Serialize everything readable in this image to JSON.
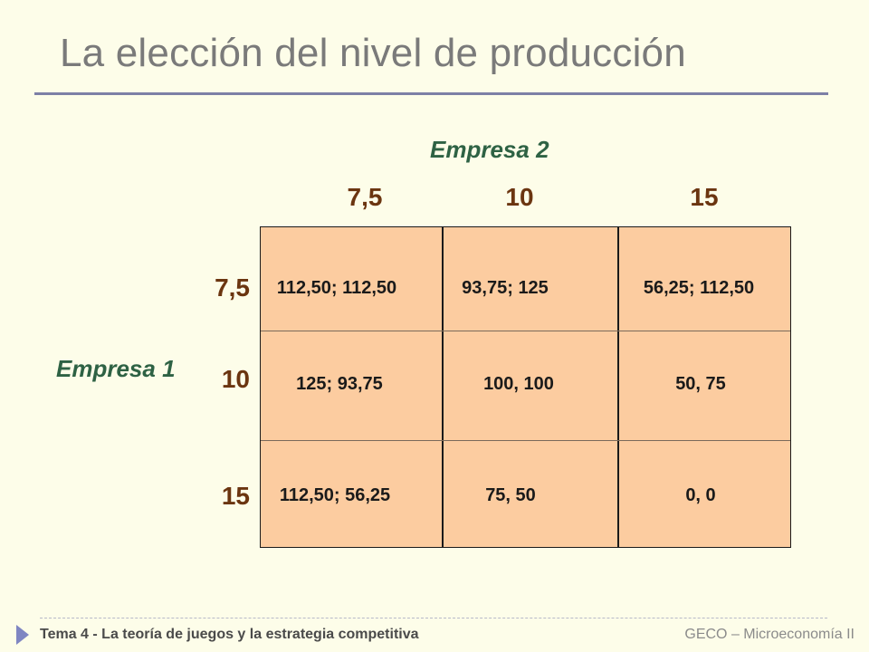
{
  "slide": {
    "title": "La elección del nivel de producción"
  },
  "game": {
    "player_column": "Empresa 2",
    "player_row": "Empresa 1",
    "column_strategies": [
      "7,5",
      "10",
      "15"
    ],
    "row_strategies": [
      "7,5",
      "10",
      "15"
    ],
    "payoffs": [
      [
        "112,50; 112,50",
        "93,75; 125",
        "56,25; 112,50"
      ],
      [
        "125; 93,75",
        "100, 100",
        "50, 75"
      ],
      [
        "112,50; 56,25",
        "75, 50",
        "0, 0"
      ]
    ]
  },
  "footer": {
    "left": "Tema 4 - La teoría de juegos y la estrategia competitiva",
    "right": "GECO – Microeconomía II"
  },
  "colors": {
    "background": "#fdfde9",
    "cell_fill": "#fccca0",
    "player_label": "#2e6244",
    "strategy_label": "#6b3510",
    "accent": "#7f86c2"
  },
  "icons": {
    "footer_marker": "triangle-right-icon"
  }
}
